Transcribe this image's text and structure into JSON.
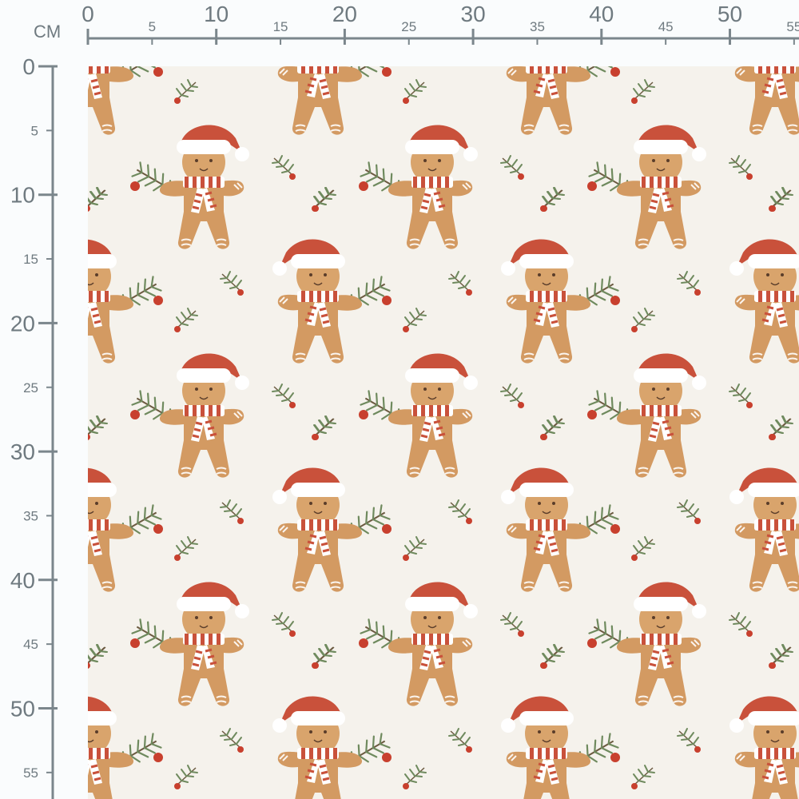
{
  "unit_label": "CM",
  "ruler": {
    "horizontal": {
      "major": [
        0,
        10,
        20,
        30,
        40,
        50
      ],
      "minor": [
        5,
        15,
        25,
        35,
        45,
        55
      ]
    },
    "vertical": {
      "major": [
        0,
        10,
        20,
        30,
        40,
        50
      ],
      "minor": [
        5,
        15,
        25,
        35,
        45,
        55
      ]
    }
  },
  "fabric": {
    "motif": "gingerbread man with santa hat, striped scarf and pine sprig",
    "colors": {
      "background": "#f5f2ec",
      "cookie": "#d39a62",
      "hat": "#c9513b",
      "trim": "#ffffff",
      "pine": "#6f8a5e",
      "berry": "#c8402e"
    }
  },
  "colors": {
    "ruler": "#7b868c"
  }
}
